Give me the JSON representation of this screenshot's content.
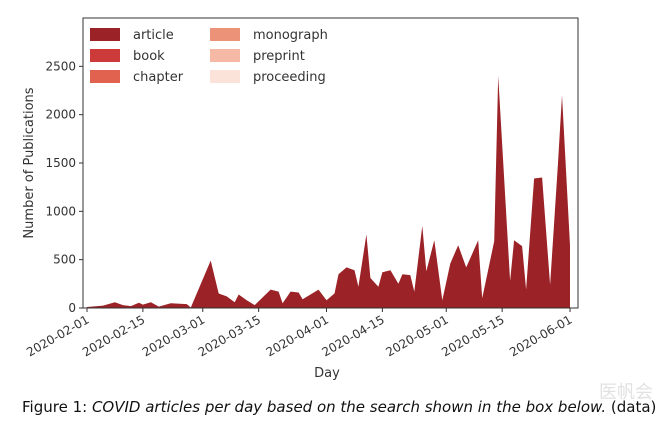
{
  "chart_data": {
    "type": "area",
    "stacked": true,
    "xlabel": "Day",
    "ylabel": "Number of Publications",
    "x_ticks": [
      "2020-02-01",
      "2020-02-15",
      "2020-03-01",
      "2020-03-15",
      "2020-04-01",
      "2020-04-15",
      "2020-05-01",
      "2020-05-15",
      "2020-06-01"
    ],
    "y_ticks": [
      0,
      500,
      1000,
      1500,
      2000,
      2500
    ],
    "xlim": [
      "2020-01-31",
      "2020-06-03"
    ],
    "ylim": [
      0,
      3000
    ],
    "legend_position": "top-left",
    "grid": false,
    "series": [
      {
        "name": "article",
        "color": "#9b2226",
        "points": [
          [
            "2020-02-01",
            10
          ],
          [
            "2020-02-05",
            25
          ],
          [
            "2020-02-08",
            60
          ],
          [
            "2020-02-10",
            30
          ],
          [
            "2020-02-12",
            20
          ],
          [
            "2020-02-14",
            55
          ],
          [
            "2020-02-15",
            35
          ],
          [
            "2020-02-17",
            60
          ],
          [
            "2020-02-19",
            15
          ],
          [
            "2020-02-22",
            50
          ],
          [
            "2020-02-26",
            40
          ],
          [
            "2020-02-27",
            5
          ],
          [
            "2020-03-03",
            490
          ],
          [
            "2020-03-05",
            150
          ],
          [
            "2020-03-07",
            120
          ],
          [
            "2020-03-09",
            60
          ],
          [
            "2020-03-10",
            140
          ],
          [
            "2020-03-12",
            80
          ],
          [
            "2020-03-14",
            30
          ],
          [
            "2020-03-18",
            190
          ],
          [
            "2020-03-20",
            170
          ],
          [
            "2020-03-21",
            50
          ],
          [
            "2020-03-23",
            170
          ],
          [
            "2020-03-25",
            160
          ],
          [
            "2020-03-26",
            90
          ],
          [
            "2020-03-28",
            140
          ],
          [
            "2020-03-30",
            190
          ],
          [
            "2020-04-01",
            80
          ],
          [
            "2020-04-03",
            150
          ],
          [
            "2020-04-04",
            350
          ],
          [
            "2020-04-06",
            420
          ],
          [
            "2020-04-08",
            390
          ],
          [
            "2020-04-09",
            220
          ],
          [
            "2020-04-11",
            760
          ],
          [
            "2020-04-12",
            310
          ],
          [
            "2020-04-14",
            220
          ],
          [
            "2020-04-15",
            370
          ],
          [
            "2020-04-17",
            390
          ],
          [
            "2020-04-19",
            250
          ],
          [
            "2020-04-20",
            350
          ],
          [
            "2020-04-22",
            340
          ],
          [
            "2020-04-23",
            170
          ],
          [
            "2020-04-25",
            850
          ],
          [
            "2020-04-26",
            380
          ],
          [
            "2020-04-28",
            700
          ],
          [
            "2020-04-30",
            80
          ],
          [
            "2020-05-02",
            460
          ],
          [
            "2020-05-04",
            650
          ],
          [
            "2020-05-06",
            420
          ],
          [
            "2020-05-09",
            700
          ],
          [
            "2020-05-10",
            100
          ],
          [
            "2020-05-13",
            690
          ],
          [
            "2020-05-14",
            2400
          ],
          [
            "2020-05-17",
            280
          ],
          [
            "2020-05-18",
            700
          ],
          [
            "2020-05-20",
            640
          ],
          [
            "2020-05-21",
            190
          ],
          [
            "2020-05-23",
            1340
          ],
          [
            "2020-05-25",
            1350
          ],
          [
            "2020-05-27",
            240
          ],
          [
            "2020-05-29",
            1500
          ],
          [
            "2020-05-30",
            2200
          ],
          [
            "2020-06-01",
            650
          ]
        ]
      },
      {
        "name": "book",
        "color": "#cc3a3a",
        "points": []
      },
      {
        "name": "chapter",
        "color": "#e0624f",
        "points": []
      },
      {
        "name": "monograph",
        "color": "#ec9278",
        "points": []
      },
      {
        "name": "preprint",
        "color": "#f5b9a5",
        "points": []
      },
      {
        "name": "proceeding",
        "color": "#fbe3d9",
        "points": []
      }
    ]
  },
  "figure_caption": {
    "label": "Figure 1:",
    "text": "COVID articles per day based on the search shown in the box below.",
    "link": "(data)"
  },
  "watermark": "医帆会"
}
